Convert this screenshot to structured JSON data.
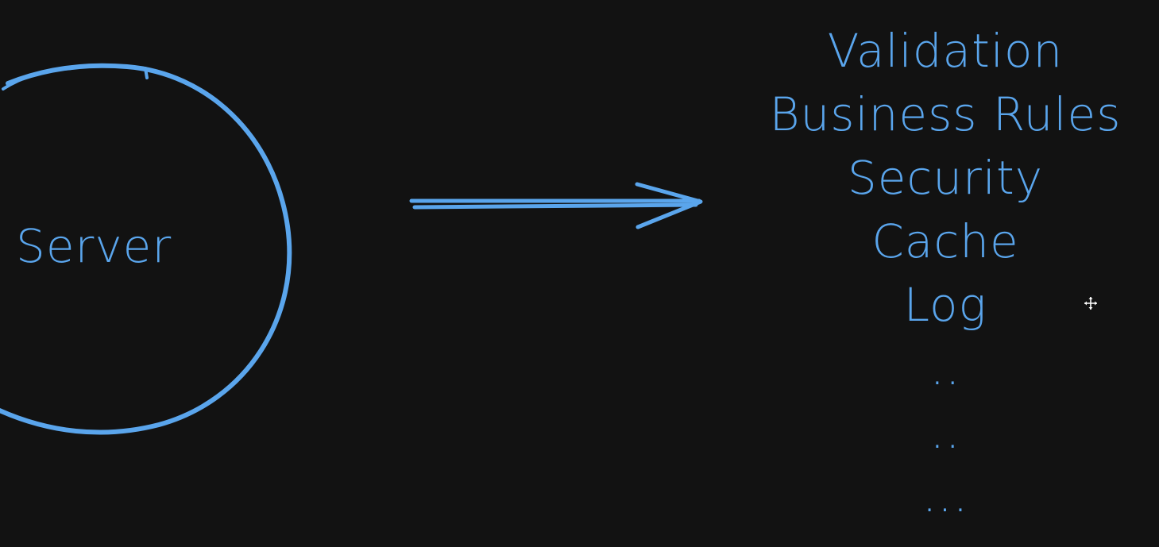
{
  "diagram": {
    "colors": {
      "background": "#121212",
      "stroke": "#5aa5ec",
      "cursor": "#ffffff"
    },
    "server_node": {
      "label": "Server"
    },
    "arrow": {
      "direction": "server-to-list"
    },
    "list_items": [
      "Validation",
      "Business Rules",
      "Security",
      "Cache",
      "Log",
      "..",
      "..",
      "..."
    ],
    "cursor_icon": "move-cursor-icon"
  }
}
